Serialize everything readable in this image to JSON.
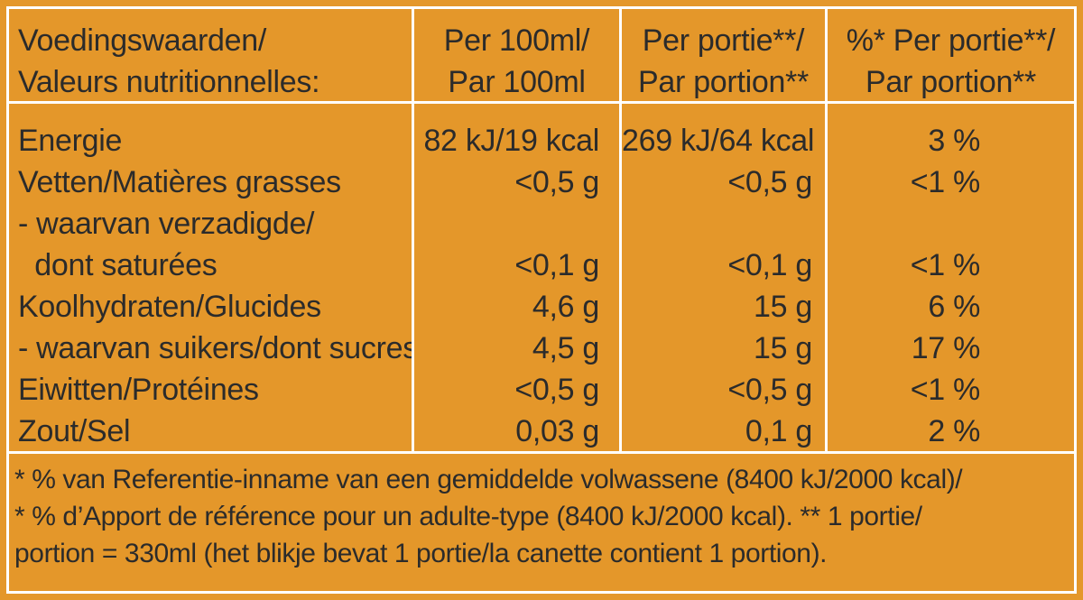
{
  "table": {
    "headers": {
      "col1": [
        "Voedingswaarden/",
        "Valeurs nutritionnelles:"
      ],
      "col2": [
        "Per 100ml/",
        "Par 100ml"
      ],
      "col3": [
        "Per portie**/",
        "Par portion**"
      ],
      "col4": [
        "%* Per portie**/",
        "Par portion**"
      ]
    },
    "rows": [
      {
        "label": "Energie",
        "per100": "82 kJ/19 kcal",
        "perPortion": "269 kJ/64 kcal",
        "pct": "3 %"
      },
      {
        "label": "Vetten/Matières grasses",
        "per100": "<0,5 g",
        "perPortion": "<0,5 g",
        "pct": "<1 %"
      },
      {
        "label": "- waarvan verzadigde/",
        "per100": "",
        "perPortion": "",
        "pct": ""
      },
      {
        "label": "  dont saturées",
        "per100": "<0,1 g",
        "perPortion": "<0,1 g",
        "pct": "<1 %"
      },
      {
        "label": "Koolhydraten/Glucides",
        "per100": "4,6 g",
        "perPortion": "15 g",
        "pct": "6 %"
      },
      {
        "label": "- waarvan suikers/dont sucres",
        "per100": "4,5 g",
        "perPortion": "15 g",
        "pct": "17 %"
      },
      {
        "label": "Eiwitten/Protéines",
        "per100": "<0,5 g",
        "perPortion": "<0,5 g",
        "pct": "<1 %"
      },
      {
        "label": "Zout/Sel",
        "per100": "0,03 g",
        "perPortion": "0,1 g",
        "pct": "2 %"
      }
    ],
    "footer": [
      "* % van Referentie-inname van een gemiddelde volwassene (8400 kJ/2000 kcal)/",
      "* % d’Apport de référence pour un adulte-type (8400 kJ/2000 kcal). ** 1 portie/",
      "portion = 330ml (het blikje bevat 1 portie/la canette contient 1 portion)."
    ]
  },
  "colors": {
    "background": "#e4972a",
    "border": "#ffffff",
    "text": "#2b2b2b"
  }
}
